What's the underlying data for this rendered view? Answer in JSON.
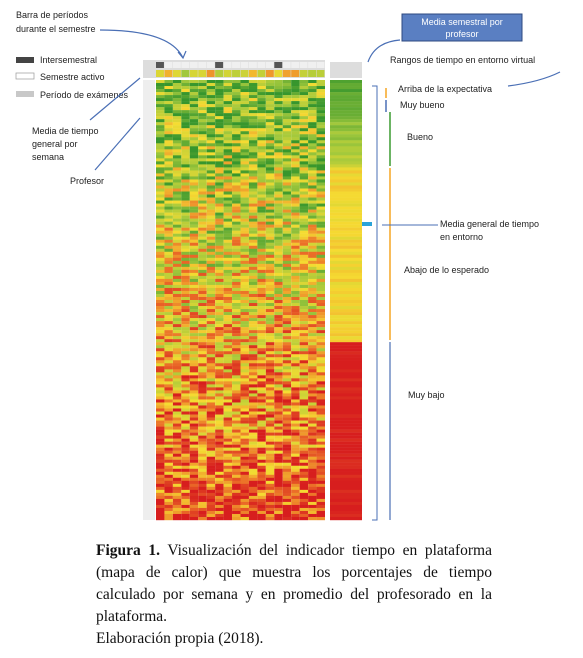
{
  "annotations": {
    "period_bar": [
      "Barra de períodos",
      "durante el semestre"
    ],
    "legend": [
      "Intersemestral",
      "Semestre activo",
      "Período de exámenes"
    ],
    "weekly_mean": [
      "Media de tiempo",
      "general por",
      "semana"
    ],
    "teacher": "Profesor",
    "semester_mean": [
      "Media semestral por",
      "profesor"
    ],
    "ranges_title": "Rangos de tiempo en entorno virtual",
    "ranges": [
      "Arriba de la expectativa",
      "Muy bueno",
      "Bueno",
      "Abajo de lo esperado",
      "Muy bajo"
    ],
    "general_mean": [
      "Media general de tiempo",
      "en entorno"
    ]
  },
  "caption": {
    "label": "Figura 1.",
    "text": "Visualización del indicador tiempo en plataforma (mapa de calor) que muestra los porcentajes de tiempo calculado por semana y en promedio del profesorado en la plataforma.",
    "source": "Elaboración propia (2018)."
  }
}
